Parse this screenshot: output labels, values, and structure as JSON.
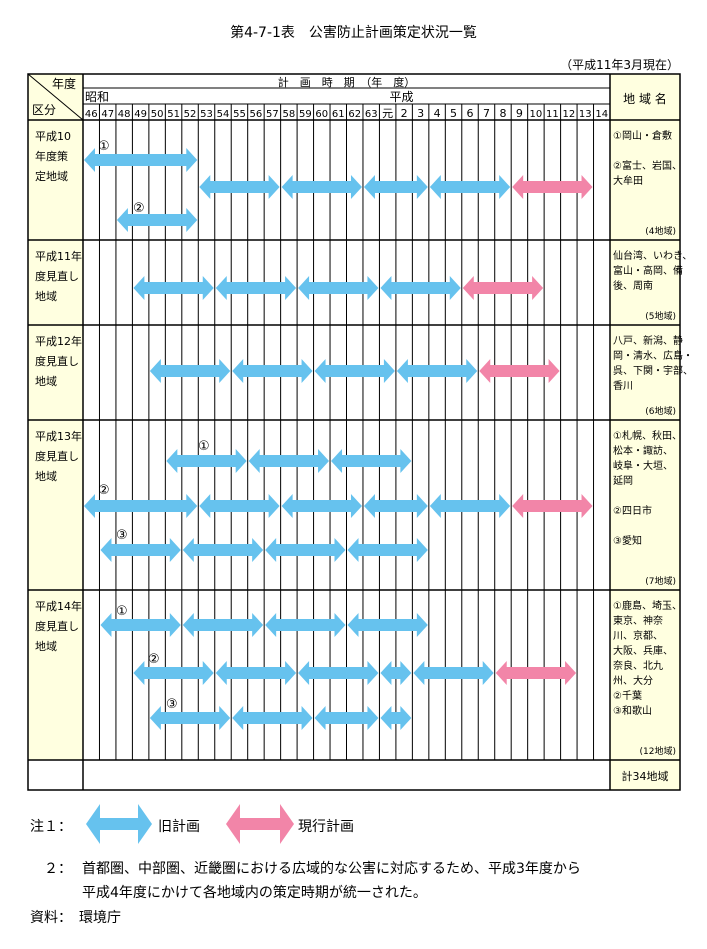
{
  "title": "第4-7-1表　公害防止計画策定状況一覧",
  "date_note": "（平成11年3月現在）",
  "header": {
    "corner_top": "年度",
    "corner_bottom": "区分",
    "period_label": "計　画　時　期　（年　度）",
    "era_showa": "昭和",
    "era_heisei": "平成",
    "region_header": "地 域 名"
  },
  "years": [
    "46",
    "47",
    "48",
    "49",
    "50",
    "51",
    "52",
    "53",
    "54",
    "55",
    "56",
    "57",
    "58",
    "59",
    "60",
    "61",
    "62",
    "63",
    "元",
    "2",
    "3",
    "4",
    "5",
    "6",
    "7",
    "8",
    "9",
    "10",
    "11",
    "12",
    "13",
    "14"
  ],
  "colors": {
    "old_plan": "#66c2ee",
    "current_plan": "#f285a8",
    "label_bg": "#ffffe0"
  },
  "rows": [
    {
      "category": [
        "平成10",
        "年度策",
        "定地域"
      ],
      "regions": [
        "①岡山・倉敷",
        "",
        "②富士、岩国、",
        "大牟田"
      ],
      "count": "(4地域)"
    },
    {
      "category": [
        "平成11年",
        "度見直し",
        "地域"
      ],
      "regions": [
        "仙台湾、いわき、",
        "富山・高岡、備",
        "後、周南"
      ],
      "count": "(5地域)"
    },
    {
      "category": [
        "平成12年",
        "度見直し",
        "地域"
      ],
      "regions": [
        "八戸、新潟、静",
        "岡・清水、広島・",
        "呉、下関・宇部、",
        "香川"
      ],
      "count": "(6地域)"
    },
    {
      "category": [
        "平成13年",
        "度見直し",
        "地域"
      ],
      "regions": [
        "①札幌、秋田、",
        "松本・諏訪、",
        "岐阜・大垣、",
        "延岡",
        "",
        "②四日市",
        "",
        "③愛知"
      ],
      "count": "(7地域)"
    },
    {
      "category": [
        "平成14年",
        "度見直し",
        "地域"
      ],
      "regions": [
        "①鹿島、埼玉、",
        "東京、神奈",
        "川、京都、",
        "大阪、兵庫、",
        "奈良、北九",
        "州、大分",
        "②千葉",
        "③和歌山"
      ],
      "count": "(12地域)"
    }
  ],
  "total": "計34地域",
  "markers": [
    "①",
    "②",
    "③",
    "①",
    "②",
    "③",
    "①",
    "②",
    "③"
  ],
  "legend": {
    "prefix": "注１：",
    "old_plan": "旧計画",
    "current_plan": "現行計画"
  },
  "note2": {
    "prefix": "２：",
    "line1": "首都圏、中部圏、近畿圏における広域的な公害に対応するため、平成3年度から",
    "line2": "平成4年度にかけて各地域内の策定時期が統一された。"
  },
  "source": "資料：　環境庁",
  "plans": [
    {
      "row": 0,
      "lane": 0,
      "from": "46",
      "to": "52",
      "kind": "old"
    },
    {
      "row": 0,
      "lane": 1,
      "from": "53",
      "to": "57",
      "kind": "old"
    },
    {
      "row": 0,
      "lane": 1,
      "from": "58",
      "to": "62",
      "kind": "old"
    },
    {
      "row": 0,
      "lane": 1,
      "from": "63",
      "to": "3",
      "kind": "old"
    },
    {
      "row": 0,
      "lane": 1,
      "from": "4",
      "to": "8",
      "kind": "old"
    },
    {
      "row": 0,
      "lane": 1,
      "from": "9",
      "to": "13",
      "kind": "current"
    },
    {
      "row": 0,
      "lane": 2,
      "from": "48",
      "to": "52",
      "kind": "old"
    },
    {
      "row": 1,
      "lane": 0,
      "from": "49",
      "to": "53",
      "kind": "old"
    },
    {
      "row": 1,
      "lane": 0,
      "from": "54",
      "to": "58",
      "kind": "old"
    },
    {
      "row": 1,
      "lane": 0,
      "from": "59",
      "to": "63",
      "kind": "old"
    },
    {
      "row": 1,
      "lane": 0,
      "from": "元",
      "to": "5",
      "kind": "old"
    },
    {
      "row": 1,
      "lane": 0,
      "from": "6",
      "to": "10",
      "kind": "current"
    },
    {
      "row": 2,
      "lane": 0,
      "from": "50",
      "to": "54",
      "kind": "old"
    },
    {
      "row": 2,
      "lane": 0,
      "from": "55",
      "to": "59",
      "kind": "old"
    },
    {
      "row": 2,
      "lane": 0,
      "from": "60",
      "to": "元",
      "kind": "old"
    },
    {
      "row": 2,
      "lane": 0,
      "from": "2",
      "to": "6",
      "kind": "old"
    },
    {
      "row": 2,
      "lane": 0,
      "from": "7",
      "to": "11",
      "kind": "current"
    },
    {
      "row": 3,
      "lane": 0,
      "from": "51",
      "to": "55",
      "kind": "old"
    },
    {
      "row": 3,
      "lane": 0,
      "from": "56",
      "to": "60",
      "kind": "old"
    },
    {
      "row": 3,
      "lane": 0,
      "from": "61",
      "to": "2",
      "kind": "old"
    },
    {
      "row": 3,
      "lane": 1,
      "from": "46",
      "to": "52",
      "kind": "old"
    },
    {
      "row": 3,
      "lane": 1,
      "from": "53",
      "to": "57",
      "kind": "old"
    },
    {
      "row": 3,
      "lane": 1,
      "from": "58",
      "to": "62",
      "kind": "old"
    },
    {
      "row": 3,
      "lane": 1,
      "from": "63",
      "to": "3",
      "kind": "old"
    },
    {
      "row": 3,
      "lane": 1,
      "from": "4",
      "to": "8",
      "kind": "old"
    },
    {
      "row": 3,
      "lane": 1,
      "from": "9",
      "to": "13",
      "kind": "current"
    },
    {
      "row": 3,
      "lane": 2,
      "from": "47",
      "to": "51",
      "kind": "old"
    },
    {
      "row": 3,
      "lane": 2,
      "from": "52",
      "to": "56",
      "kind": "old"
    },
    {
      "row": 3,
      "lane": 2,
      "from": "57",
      "to": "61",
      "kind": "old"
    },
    {
      "row": 3,
      "lane": 2,
      "from": "62",
      "to": "3",
      "kind": "old"
    },
    {
      "row": 4,
      "lane": 0,
      "from": "47",
      "to": "51",
      "kind": "old"
    },
    {
      "row": 4,
      "lane": 0,
      "from": "52",
      "to": "56",
      "kind": "old"
    },
    {
      "row": 4,
      "lane": 0,
      "from": "57",
      "to": "61",
      "kind": "old"
    },
    {
      "row": 4,
      "lane": 0,
      "from": "62",
      "to": "3",
      "kind": "old"
    },
    {
      "row": 4,
      "lane": 1,
      "from": "49",
      "to": "53",
      "kind": "old"
    },
    {
      "row": 4,
      "lane": 1,
      "from": "54",
      "to": "58",
      "kind": "old"
    },
    {
      "row": 4,
      "lane": 1,
      "from": "59",
      "to": "63",
      "kind": "old"
    },
    {
      "row": 4,
      "lane": 1,
      "from": "元",
      "to": "2",
      "kind": "old"
    },
    {
      "row": 4,
      "lane": 1,
      "from": "3",
      "to": "7",
      "kind": "old"
    },
    {
      "row": 4,
      "lane": 1,
      "from": "8",
      "to": "12",
      "kind": "current"
    },
    {
      "row": 4,
      "lane": 2,
      "from": "50",
      "to": "54",
      "kind": "old"
    },
    {
      "row": 4,
      "lane": 2,
      "from": "55",
      "to": "59",
      "kind": "old"
    },
    {
      "row": 4,
      "lane": 2,
      "from": "60",
      "to": "63",
      "kind": "old"
    },
    {
      "row": 4,
      "lane": 2,
      "from": "元",
      "to": "2",
      "kind": "old"
    }
  ]
}
